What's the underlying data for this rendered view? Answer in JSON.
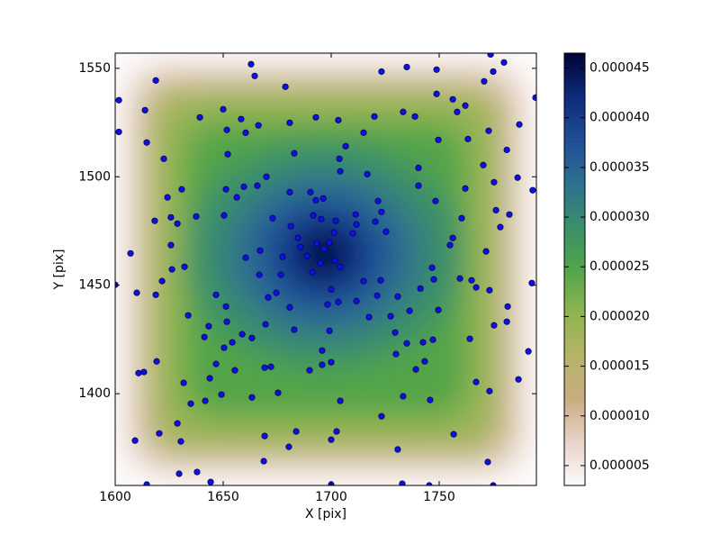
{
  "chart_data": {
    "type": "scatter",
    "xlabel": "X [pix]",
    "ylabel": "Y [pix]",
    "xlim": [
      1600,
      1795
    ],
    "ylim": [
      1357.7,
      1557
    ],
    "xticks": [
      1600,
      1650,
      1700,
      1750
    ],
    "yticks": [
      1400,
      1450,
      1500,
      1550
    ],
    "colorbar": {
      "lim": [
        3e-06,
        4.65e-05
      ],
      "ticks": [
        5e-06,
        {
          "value": 1e-05,
          "label": "0.000010"
        },
        1.5e-05,
        {
          "value": 2e-05,
          "label": "0.000020"
        },
        2.5e-05,
        {
          "value": 3e-05,
          "label": "0.000030"
        },
        3.5e-05,
        {
          "value": 4e-05,
          "label": "0.000040"
        },
        4.5e-05
      ],
      "colormap": [
        "#fdfbfb",
        "#e8d3c9",
        "#c9ac82",
        "#b6b467",
        "#8eb451",
        "#52a44a",
        "#3a8f6b",
        "#2e7090",
        "#1f4d96",
        "#0e2a7a",
        "#020236"
      ]
    },
    "series": [
      {
        "color": "#1010e0",
        "x": [
          1601.7,
          1601.7,
          1613.8,
          1618.8,
          1614.6,
          1622.5,
          1624.2,
          1630.8,
          1618.3,
          1625.8,
          1628.8,
          1607.1,
          1625.8,
          1626.3,
          1632.1,
          1600,
          1610,
          1618.8,
          1621.7,
          1633.8,
          1619.2,
          1610.8,
          1613.3,
          1631.7,
          1635,
          1609.2,
          1620.4,
          1628.8,
          1630.4,
          1629.6,
          1637.9,
          1614.6,
          1644.2,
          1639.2,
          1650,
          1651.7,
          1652.1,
          1658.3,
          1660.4,
          1662.9,
          1664.6,
          1666.3,
          1651.3,
          1656.3,
          1659.6,
          1665.8,
          1670,
          1637.5,
          1650.4,
          1672.9,
          1660.4,
          1667.1,
          1666.7,
          1646.7,
          1651.3,
          1651.7,
          1643.3,
          1641.3,
          1650.4,
          1654.2,
          1658.8,
          1663.3,
          1669.6,
          1670.8,
          1646.7,
          1643.8,
          1655.4,
          1641.7,
          1649.2,
          1663.3,
          1669.2,
          1672.1,
          1675.4,
          1669.2,
          1668.8,
          1680.4,
          1683.8,
          1678.8,
          1680.8,
          1682.9,
          1680.8,
          1690.4,
          1696.3,
          1681.3,
          1684.6,
          1685.8,
          1677.5,
          1676.7,
          1674.6,
          1680.8,
          1682.9,
          1688.8,
          1691.3,
          1691.7,
          1692.9,
          1695.4,
          1702.1,
          1693.3,
          1696.7,
          1699.2,
          1701.3,
          1695,
          1701.7,
          1704.2,
          1700,
          1698.3,
          1703.3,
          1699.2,
          1695.8,
          1695.8,
          1700,
          1690,
          1704.2,
          1702.5,
          1700,
          1700,
          1692.9,
          1703.3,
          1706.7,
          1703.8,
          1704.2,
          1720,
          1715,
          1716.7,
          1711.3,
          1711.7,
          1710,
          1721.7,
          1723.3,
          1720.4,
          1725.4,
          1715,
          1722.9,
          1711.7,
          1721.3,
          1717.5,
          1723.3,
          1733.3,
          1738.8,
          1735,
          1748.8,
          1748.8,
          1756.3,
          1758.3,
          1762.1,
          1749.6,
          1740.4,
          1740.4,
          1748.3,
          1727.5,
          1730.8,
          1736.3,
          1741.3,
          1746.7,
          1747.5,
          1749.6,
          1729.6,
          1735,
          1742.5,
          1747.1,
          1730,
          1739.2,
          1743.3,
          1723.3,
          1733.3,
          1745.8,
          1730.8,
          1732.9,
          1745.4,
          1763.3,
          1772.9,
          1770.8,
          1773.8,
          1780,
          1775,
          1770.4,
          1775.4,
          1781.3,
          1787.1,
          1786.3,
          1793.3,
          1794.6,
          1762.1,
          1760.4,
          1756.3,
          1755,
          1759.6,
          1765,
          1767.1,
          1776.3,
          1782.5,
          1778.3,
          1771.7,
          1773.3,
          1781.7,
          1781.3,
          1775.4,
          1764.2,
          1792.9,
          1791.3,
          1786.7,
          1767.1,
          1773.3,
          1756.7,
          1772.5,
          1775
        ],
        "values": [
          1535.3,
          1520.7,
          1530.7,
          1544.4,
          1515.8,
          1508.3,
          1490.5,
          1494.2,
          1479.7,
          1481.3,
          1478.4,
          1464.7,
          1468.5,
          1457.3,
          1458.5,
          1450.2,
          1446.5,
          1445.6,
          1451.9,
          1436.1,
          1414.9,
          1409.5,
          1410,
          1405,
          1395.4,
          1378.4,
          1381.7,
          1386.3,
          1378,
          1363.1,
          1363.9,
          1358.1,
          1359.3,
          1527.4,
          1531.1,
          1521.6,
          1510.4,
          1526.6,
          1520.3,
          1551.9,
          1546.5,
          1523.7,
          1494.2,
          1490.5,
          1495.4,
          1495.9,
          1500,
          1481.7,
          1482.2,
          1480.9,
          1462.7,
          1466,
          1454.8,
          1445.6,
          1440.2,
          1433.2,
          1431.1,
          1426.1,
          1421.2,
          1423.7,
          1427.4,
          1425.7,
          1432,
          1444.4,
          1413.7,
          1407.1,
          1410.8,
          1396.7,
          1399.6,
          1398.3,
          1412,
          1412.4,
          1400.4,
          1380.5,
          1368.9,
          1375.5,
          1382.6,
          1541.5,
          1524.9,
          1510.8,
          1492.9,
          1492.9,
          1490,
          1477.2,
          1471.8,
          1467.6,
          1463.1,
          1454.8,
          1446.5,
          1439.8,
          1429.5,
          1463.5,
          1456,
          1482.2,
          1489.2,
          1480.5,
          1479.7,
          1469.3,
          1466.8,
          1469.7,
          1474.3,
          1460.2,
          1461.4,
          1458.5,
          1448.1,
          1441.1,
          1442.3,
          1429,
          1419.9,
          1413.3,
          1414.5,
          1410.8,
          1396.7,
          1382.6,
          1378.8,
          1358.1,
          1527.4,
          1526.1,
          1514.1,
          1508.3,
          1502.5,
          1527.8,
          1520.3,
          1501.2,
          1482.6,
          1478,
          1473.9,
          1488.8,
          1483.8,
          1479.3,
          1474.7,
          1451.9,
          1452.3,
          1442.7,
          1445.2,
          1435.3,
          1548.5,
          1529.9,
          1527.8,
          1550.6,
          1549.4,
          1538.2,
          1535.7,
          1529.9,
          1532.8,
          1517,
          1504.1,
          1495.9,
          1488.8,
          1435.7,
          1444.8,
          1438.2,
          1448.5,
          1458.1,
          1452.7,
          1438.6,
          1428.2,
          1423.2,
          1423.7,
          1424.9,
          1418.3,
          1411.2,
          1414.9,
          1389.6,
          1398.8,
          1397.1,
          1374.3,
          1358.5,
          1357.7,
          1517.4,
          1521.2,
          1544,
          1556.4,
          1552.7,
          1548.5,
          1505.4,
          1497.5,
          1512.4,
          1524.1,
          1499.6,
          1493.8,
          1536.5,
          1494.6,
          1480.9,
          1471.8,
          1468.5,
          1453.1,
          1452.3,
          1449,
          1484.6,
          1482.6,
          1476.8,
          1465.6,
          1447.7,
          1440.2,
          1433.2,
          1431.5,
          1425.3,
          1451,
          1419.5,
          1406.6,
          1405.4,
          1401.2,
          1381.3,
          1368.5,
          1357.7
        ]
      }
    ]
  }
}
